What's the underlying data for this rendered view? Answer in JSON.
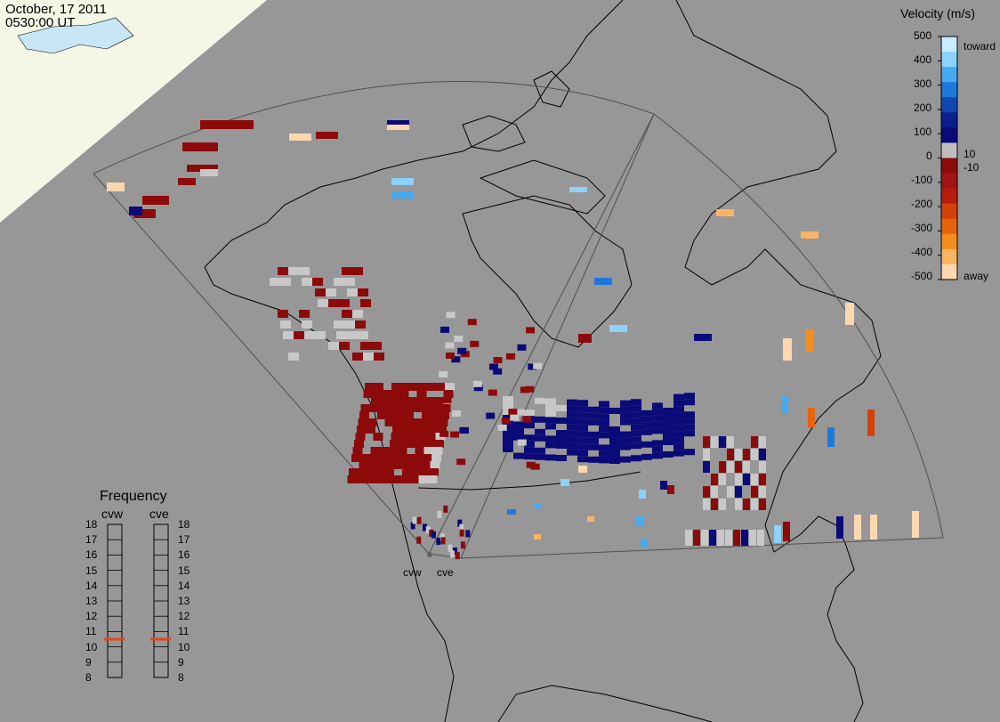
{
  "date": "October, 17 2011",
  "time": "0530:00 UT",
  "colorbar": {
    "title": "Velocity (m/s)",
    "ticks": [
      "500",
      "400",
      "300",
      "200",
      "100",
      "0",
      "-100",
      "-200",
      "-300",
      "-400",
      "-500"
    ],
    "label_toward": "toward",
    "label_away": "away",
    "label_pos10": "10",
    "label_neg10": "-10",
    "colors_top_to_bottom": [
      "#c8ebff",
      "#8cd2fa",
      "#46aaf0",
      "#1e78dc",
      "#1246b4",
      "#0a1e8c",
      "#0a0a78",
      "#bebebe",
      "#8c0a0a",
      "#a01414",
      "#b41e0a",
      "#d2410a",
      "#e6640a",
      "#f58c1e",
      "#fab464",
      "#fcd7b0"
    ]
  },
  "frequency": {
    "title": "Frequency",
    "radar_west": "cvw",
    "radar_east": "cve",
    "ticks": [
      "18",
      "17",
      "16",
      "15",
      "14",
      "13",
      "12",
      "11",
      "10",
      "9",
      "8"
    ],
    "cvw_mhz": 10.5,
    "cve_mhz": 10.5,
    "marker_color": "#e64614"
  },
  "radars": {
    "west_label": "cvw",
    "east_label": "cve"
  },
  "colors": {
    "background": "#979797",
    "grid_line": "#505050",
    "land_outline": "#000000",
    "daylight": "#f5f7e6",
    "toward_dark": "#0a0a78",
    "away_dark": "#8c0a0a",
    "ground_scatter": "#c8c8c8"
  }
}
